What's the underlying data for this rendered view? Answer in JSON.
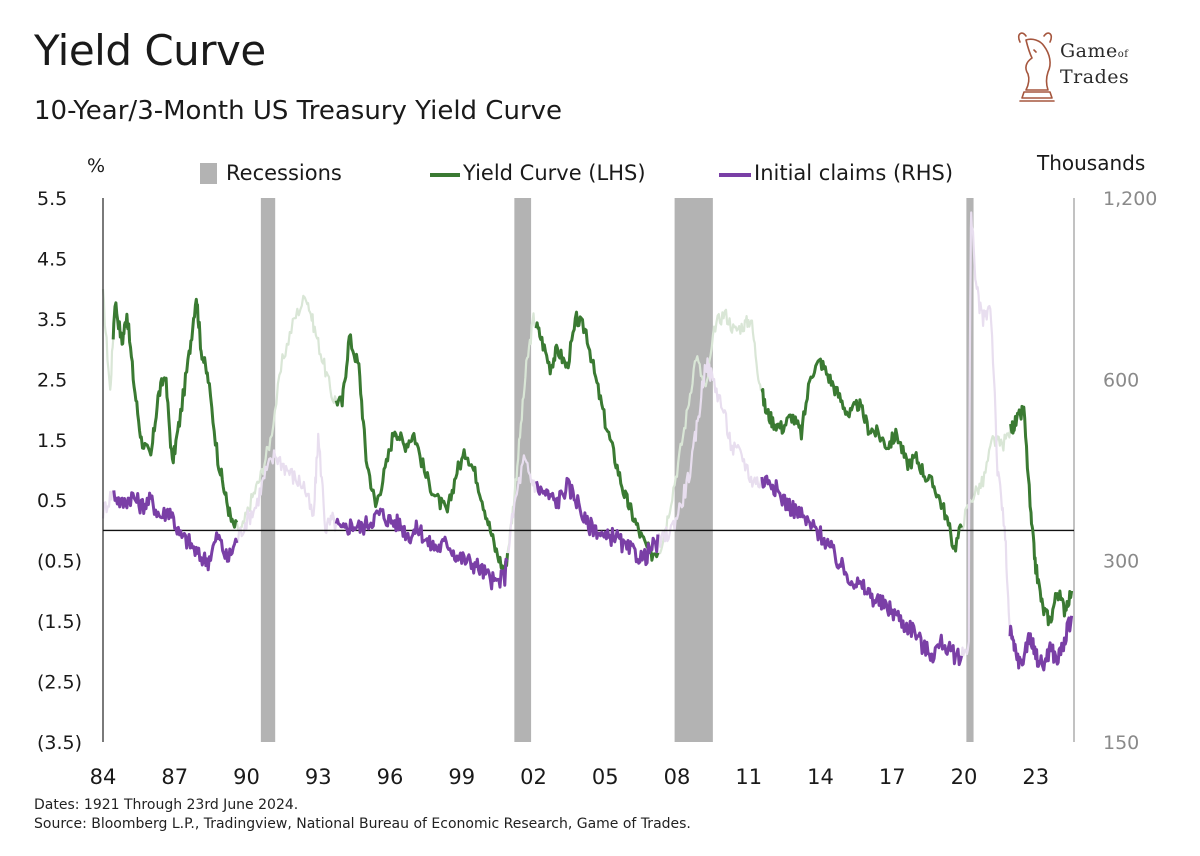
{
  "header": {
    "title": "Yield Curve",
    "subtitle": "10-Year/3-Month US Treasury Yield Curve"
  },
  "logo": {
    "line1": "Game",
    "line1_small": "of",
    "line2": "Trades"
  },
  "chart_data": {
    "type": "line",
    "title": "Yield Curve",
    "subtitle": "10-Year/3-Month US Treasury Yield Curve",
    "left_axis": {
      "unit": "%",
      "range": [
        -3.5,
        5.5
      ],
      "ticks": [
        5.5,
        4.5,
        3.5,
        2.5,
        1.5,
        0.5,
        -0.5,
        -1.5,
        -2.5,
        -3.5
      ],
      "tick_labels": [
        "5.5",
        "4.5",
        "3.5",
        "2.5",
        "1.5",
        "0.5",
        "(0.5)",
        "(1.5)",
        "(2.5)",
        "(3.5)"
      ]
    },
    "right_axis": {
      "unit": "Thousands",
      "scale": "log",
      "range": [
        150,
        1200
      ],
      "ticks": [
        1200,
        600,
        300,
        150
      ],
      "tick_labels": [
        "1,200",
        "600",
        "300",
        "150"
      ]
    },
    "x_axis": {
      "range": [
        1984,
        2024.6
      ],
      "ticks": [
        1984,
        1987,
        1990,
        1993,
        1996,
        1999,
        2002,
        2005,
        2008,
        2011,
        2014,
        2017,
        2020,
        2023
      ],
      "tick_labels": [
        "84",
        "87",
        "90",
        "93",
        "96",
        "99",
        "02",
        "05",
        "08",
        "11",
        "14",
        "17",
        "20",
        "23"
      ]
    },
    "zero_line": 0,
    "legend": {
      "position": "top",
      "recessions": "Recessions",
      "yield_curve": "Yield Curve (LHS)",
      "claims": "Initial claims (RHS)"
    },
    "recessions": [
      [
        1990.6,
        1991.2
      ],
      [
        2001.2,
        2001.9
      ],
      [
        2007.9,
        2009.5
      ],
      [
        2020.1,
        2020.4
      ]
    ],
    "series": [
      {
        "name": "Yield Curve (LHS)",
        "axis": "left",
        "color": "#3a7a32",
        "faded_color": "#d9e6d6",
        "x": [
          1984.0,
          1984.3,
          1984.5,
          1984.8,
          1985.0,
          1985.3,
          1985.6,
          1986.0,
          1986.3,
          1986.6,
          1986.9,
          1987.2,
          1987.6,
          1987.9,
          1988.1,
          1988.4,
          1988.8,
          1989.1,
          1989.4,
          1989.8,
          1990.2,
          1990.6,
          1991.0,
          1991.5,
          1992.0,
          1992.5,
          1992.8,
          1993.2,
          1993.6,
          1994.0,
          1994.3,
          1994.7,
          1995.0,
          1995.4,
          1995.8,
          1996.2,
          1996.6,
          1997.0,
          1997.5,
          1998.0,
          1998.4,
          1998.8,
          1999.2,
          1999.6,
          2000.0,
          2000.4,
          2000.8,
          2001.1,
          2001.4,
          2001.7,
          2002.0,
          2002.3,
          2002.7,
          2003.0,
          2003.4,
          2003.8,
          2004.2,
          2004.6,
          2005.0,
          2005.4,
          2005.8,
          2006.1,
          2006.5,
          2006.9,
          2007.3,
          2007.6,
          2008.0,
          2008.4,
          2008.8,
          2009.2,
          2009.6,
          2010.0,
          2010.4,
          2010.8,
          2011.1,
          2011.4,
          2011.7,
          2012.0,
          2012.4,
          2012.8,
          2013.2,
          2013.6,
          2014.0,
          2014.4,
          2014.8,
          2015.2,
          2015.6,
          2016.0,
          2016.4,
          2016.8,
          2017.2,
          2017.6,
          2018.0,
          2018.4,
          2018.8,
          2019.2,
          2019.6,
          2020.0,
          2020.4,
          2020.8,
          2021.2,
          2021.6,
          2022.0,
          2022.2,
          2022.5,
          2022.8,
          2023.0,
          2023.3,
          2023.6,
          2023.9,
          2024.2,
          2024.5
        ],
        "values": [
          3.9,
          2.3,
          3.8,
          3.1,
          3.6,
          2.4,
          1.5,
          1.2,
          2.2,
          2.6,
          1.1,
          1.8,
          2.9,
          3.9,
          3.0,
          2.5,
          1.2,
          0.6,
          0.1,
          0.0,
          0.5,
          0.9,
          1.5,
          2.8,
          3.5,
          3.9,
          3.4,
          2.8,
          2.2,
          2.1,
          3.2,
          2.7,
          1.2,
          0.4,
          1.0,
          1.7,
          1.4,
          1.6,
          0.9,
          0.5,
          0.3,
          1.0,
          1.3,
          0.9,
          0.3,
          -0.3,
          -0.7,
          0.2,
          1.4,
          2.7,
          3.5,
          3.2,
          2.7,
          3.0,
          2.7,
          3.5,
          3.3,
          2.5,
          1.8,
          1.2,
          0.6,
          0.3,
          -0.1,
          -0.4,
          -0.3,
          0.2,
          1.0,
          1.9,
          2.9,
          2.3,
          3.4,
          3.6,
          3.3,
          3.4,
          3.5,
          2.6,
          2.0,
          1.8,
          1.7,
          1.9,
          1.6,
          2.6,
          2.8,
          2.5,
          2.2,
          1.9,
          2.1,
          1.7,
          1.6,
          1.4,
          1.6,
          1.1,
          1.2,
          0.9,
          0.7,
          0.3,
          -0.3,
          0.2,
          0.6,
          0.8,
          1.5,
          1.4,
          1.7,
          1.8,
          2.0,
          0.2,
          -0.6,
          -1.3,
          -1.5,
          -1.0,
          -1.3,
          -1.0
        ]
      },
      {
        "name": "Initial claims (RHS)",
        "axis": "right",
        "color": "#7a3fa6",
        "faded_color": "#e8deef",
        "x": [
          1984.0,
          1984.4,
          1984.8,
          1985.2,
          1985.6,
          1986.0,
          1986.4,
          1986.8,
          1987.2,
          1987.6,
          1988.0,
          1988.4,
          1988.8,
          1989.2,
          1989.6,
          1990.0,
          1990.4,
          1990.8,
          1991.2,
          1991.6,
          1992.0,
          1992.4,
          1992.8,
          1993.0,
          1993.3,
          1993.6,
          1994.0,
          1994.4,
          1994.8,
          1995.2,
          1995.6,
          1996.0,
          1996.4,
          1996.8,
          1997.2,
          1997.6,
          1998.0,
          1998.4,
          1998.8,
          1999.2,
          1999.6,
          2000.0,
          2000.4,
          2000.8,
          2001.2,
          2001.6,
          2001.9,
          2002.2,
          2002.6,
          2003.0,
          2003.4,
          2003.8,
          2004.2,
          2004.6,
          2005.0,
          2005.4,
          2005.8,
          2006.2,
          2006.6,
          2007.0,
          2007.4,
          2007.8,
          2008.2,
          2008.6,
          2008.9,
          2009.2,
          2009.5,
          2009.9,
          2010.3,
          2010.7,
          2011.1,
          2011.5,
          2011.9,
          2012.3,
          2012.7,
          2013.1,
          2013.5,
          2013.9,
          2014.3,
          2014.7,
          2015.1,
          2015.5,
          2015.9,
          2016.3,
          2016.7,
          2017.1,
          2017.5,
          2017.9,
          2018.3,
          2018.7,
          2019.1,
          2019.5,
          2019.9,
          2020.2,
          2020.3,
          2020.5,
          2020.8,
          2021.1,
          2021.4,
          2021.7,
          2021.9,
          2022.1,
          2022.4,
          2022.7,
          2023.0,
          2023.3,
          2023.6,
          2023.9,
          2024.2,
          2024.5
        ],
        "values": [
          362,
          390,
          372,
          385,
          370,
          378,
          355,
          365,
          330,
          322,
          305,
          300,
          330,
          300,
          325,
          350,
          370,
          420,
          450,
          430,
          412,
          400,
          350,
          480,
          340,
          350,
          335,
          345,
          340,
          350,
          360,
          350,
          345,
          330,
          340,
          320,
          315,
          322,
          305,
          300,
          295,
          285,
          275,
          283,
          370,
          440,
          410,
          395,
          385,
          375,
          400,
          380,
          345,
          340,
          325,
          332,
          315,
          310,
          302,
          317,
          325,
          340,
          375,
          430,
          520,
          640,
          600,
          540,
          460,
          450,
          410,
          405,
          410,
          385,
          370,
          360,
          345,
          335,
          320,
          300,
          285,
          275,
          268,
          258,
          252,
          246,
          235,
          231,
          215,
          210,
          220,
          210,
          208,
          220,
          1150,
          850,
          750,
          800,
          420,
          340,
          230,
          215,
          200,
          225,
          210,
          200,
          215,
          205,
          220,
          243
        ]
      }
    ]
  },
  "footer": {
    "dates": "Dates: 1921 Through 23rd June 2024.",
    "source": "Source: Bloomberg L.P., Tradingview, National Bureau of Economic Research, Game of Trades."
  }
}
